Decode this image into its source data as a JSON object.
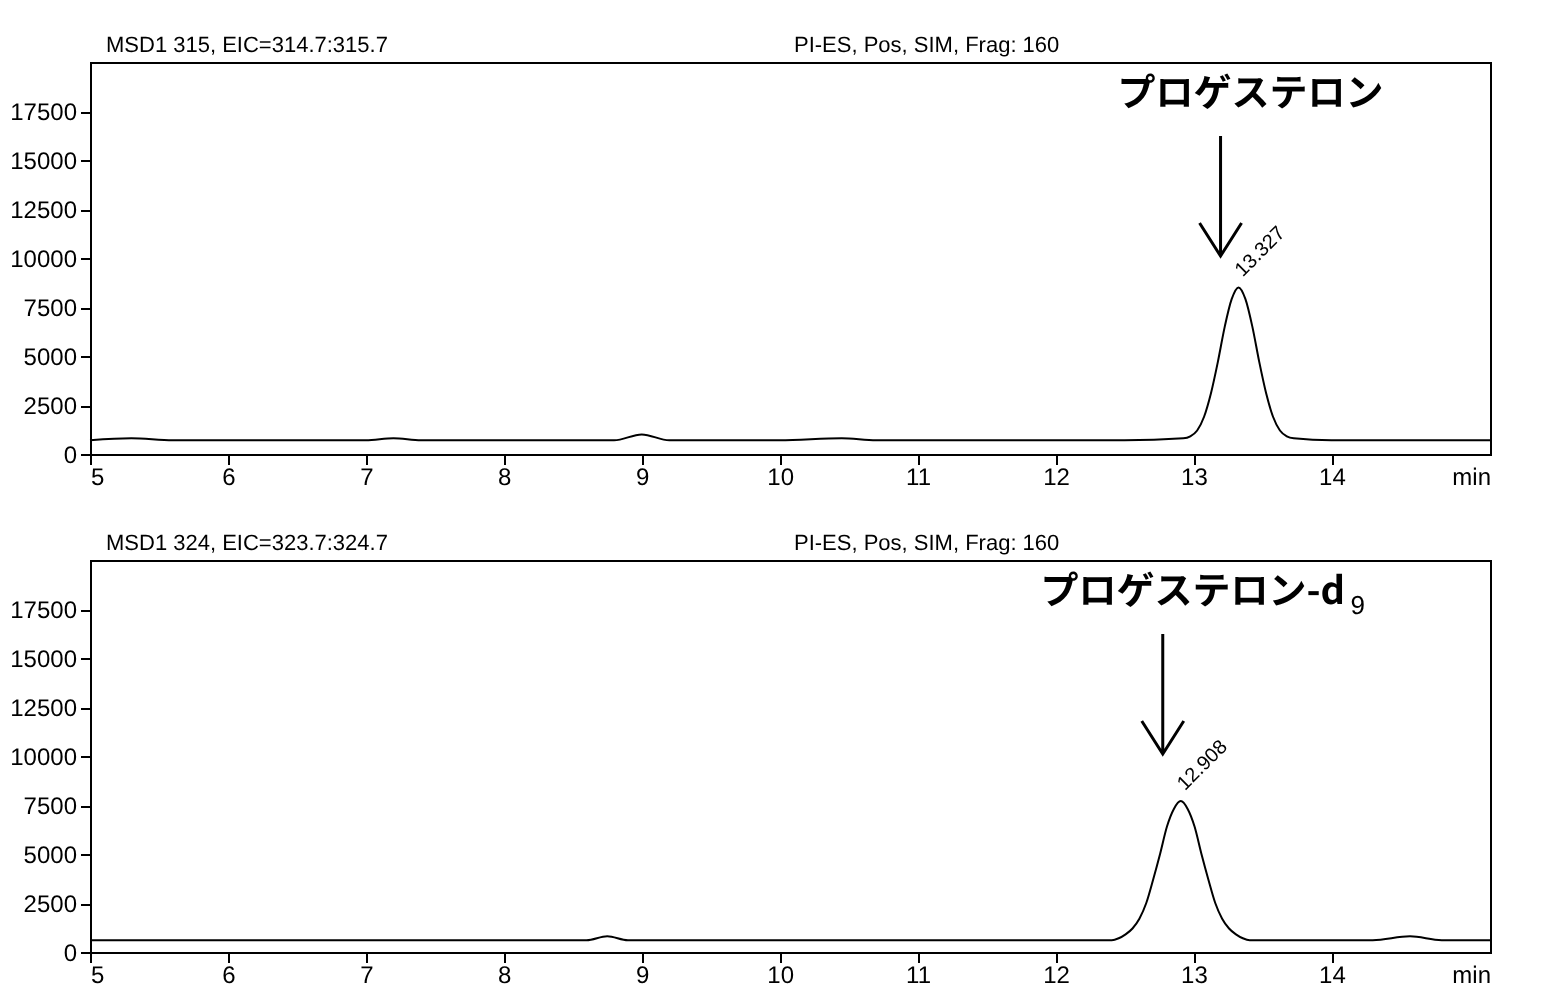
{
  "chart_data": [
    {
      "type": "line",
      "title": "MSD1 315, EIC=314.7:315.7",
      "xlabel": "min",
      "annotations": [
        "PI-ES, Pos, SIM, Frag: 160",
        {
          "text": "13.327",
          "x": 13.327,
          "y": 8500
        },
        "プロゲステロン"
      ],
      "series": [
        {
          "color": "#000000",
          "x": [
            5,
            5.3,
            5.6,
            6,
            6.5,
            7,
            7.2,
            7.4,
            8,
            8.5,
            8.8,
            9,
            9.2,
            9.5,
            10,
            10.45,
            10.7,
            11,
            12,
            12.5,
            12.927,
            12.977,
            13.027,
            13.077,
            13.127,
            13.177,
            13.227,
            13.277,
            13.327,
            13.377,
            13.427,
            13.477,
            13.527,
            13.577,
            13.627,
            13.677,
            13.727,
            14,
            14.5,
            15.15
          ],
          "values": [
            700,
            800,
            700,
            700,
            700,
            700,
            800,
            700,
            700,
            700,
            700,
            1000,
            700,
            700,
            700,
            800,
            700,
            700,
            700,
            700,
            800,
            900,
            1200,
            1900,
            3100,
            4700,
            6500,
            7900,
            8500,
            7900,
            6500,
            4700,
            3100,
            1900,
            1200,
            900,
            800,
            700,
            700,
            700
          ]
        }
      ],
      "xlim": [
        5,
        15.15
      ],
      "xticks": [
        5,
        6,
        7,
        8,
        9,
        10,
        11,
        12,
        13,
        14
      ],
      "ylim": [
        0,
        20000
      ],
      "yticks": [
        0,
        2500,
        5000,
        7500,
        10000,
        12500,
        15000,
        17500
      ]
    },
    {
      "type": "line",
      "title": "MSD1 324, EIC=323.7:324.7",
      "xlabel": "min",
      "annotations": [
        "PI-ES, Pos, SIM, Frag: 160",
        {
          "text": "12.908",
          "x": 12.908,
          "y": 7700
        },
        "プロゲステロン-d$_{9}$"
      ],
      "series": [
        {
          "color": "#000000",
          "x": [
            5,
            6,
            7,
            8,
            8.6,
            8.75,
            8.9,
            9.5,
            10,
            11,
            12,
            12.408,
            12.458,
            12.508,
            12.558,
            12.608,
            12.658,
            12.708,
            12.758,
            12.808,
            12.858,
            12.908,
            12.958,
            13.008,
            13.058,
            13.108,
            13.158,
            13.208,
            13.258,
            13.308,
            13.358,
            13.408,
            14,
            14.3,
            14.57,
            14.8,
            15.15
          ],
          "values": [
            600,
            600,
            600,
            600,
            600,
            800,
            600,
            600,
            600,
            600,
            600,
            600,
            700,
            900,
            1200,
            1700,
            2500,
            3700,
            5000,
            6400,
            7300,
            7700,
            7300,
            6400,
            5000,
            3700,
            2500,
            1700,
            1200,
            900,
            700,
            600,
            600,
            600,
            800,
            600,
            600
          ]
        }
      ],
      "xlim": [
        5,
        15.15
      ],
      "xticks": [
        5,
        6,
        7,
        8,
        9,
        10,
        11,
        12,
        13,
        14
      ],
      "ylim": [
        0,
        20000
      ],
      "yticks": [
        0,
        2500,
        5000,
        7500,
        10000,
        12500,
        15000,
        17500
      ]
    }
  ]
}
